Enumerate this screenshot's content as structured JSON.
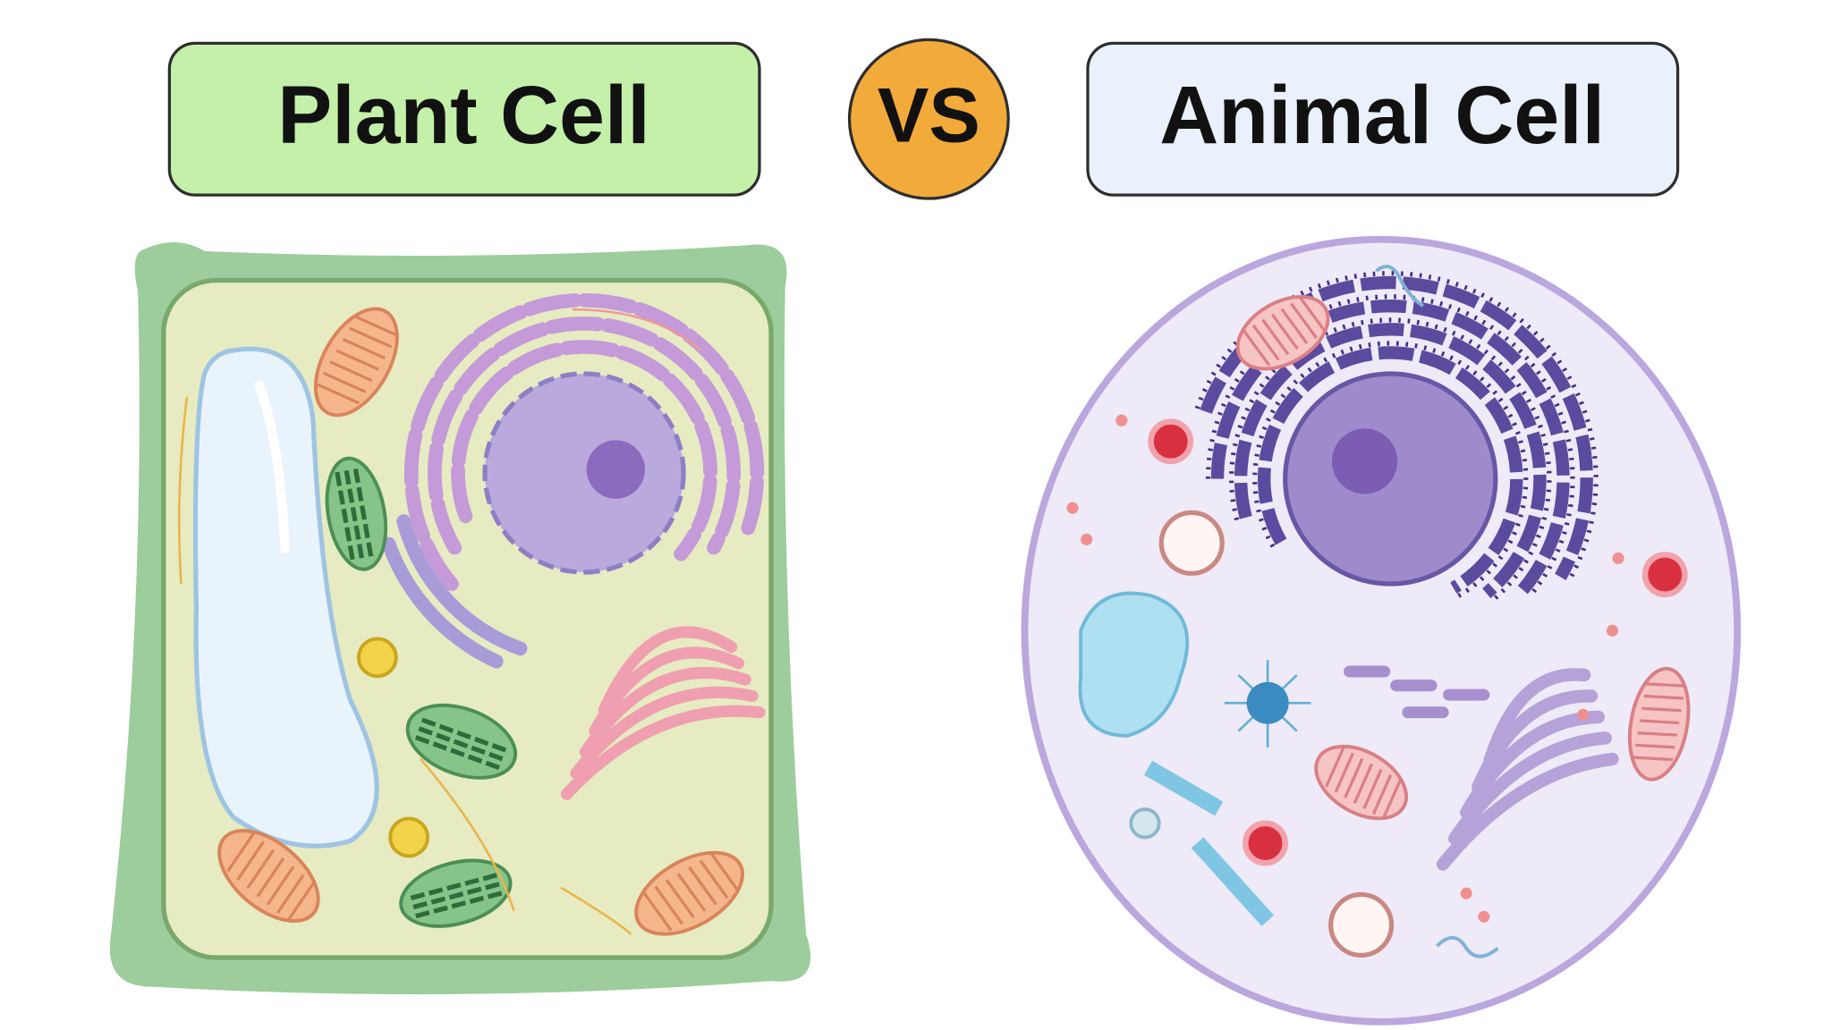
{
  "header": {
    "left": "Plant Cell",
    "vs": "VS",
    "right": "Animal Cell"
  }
}
